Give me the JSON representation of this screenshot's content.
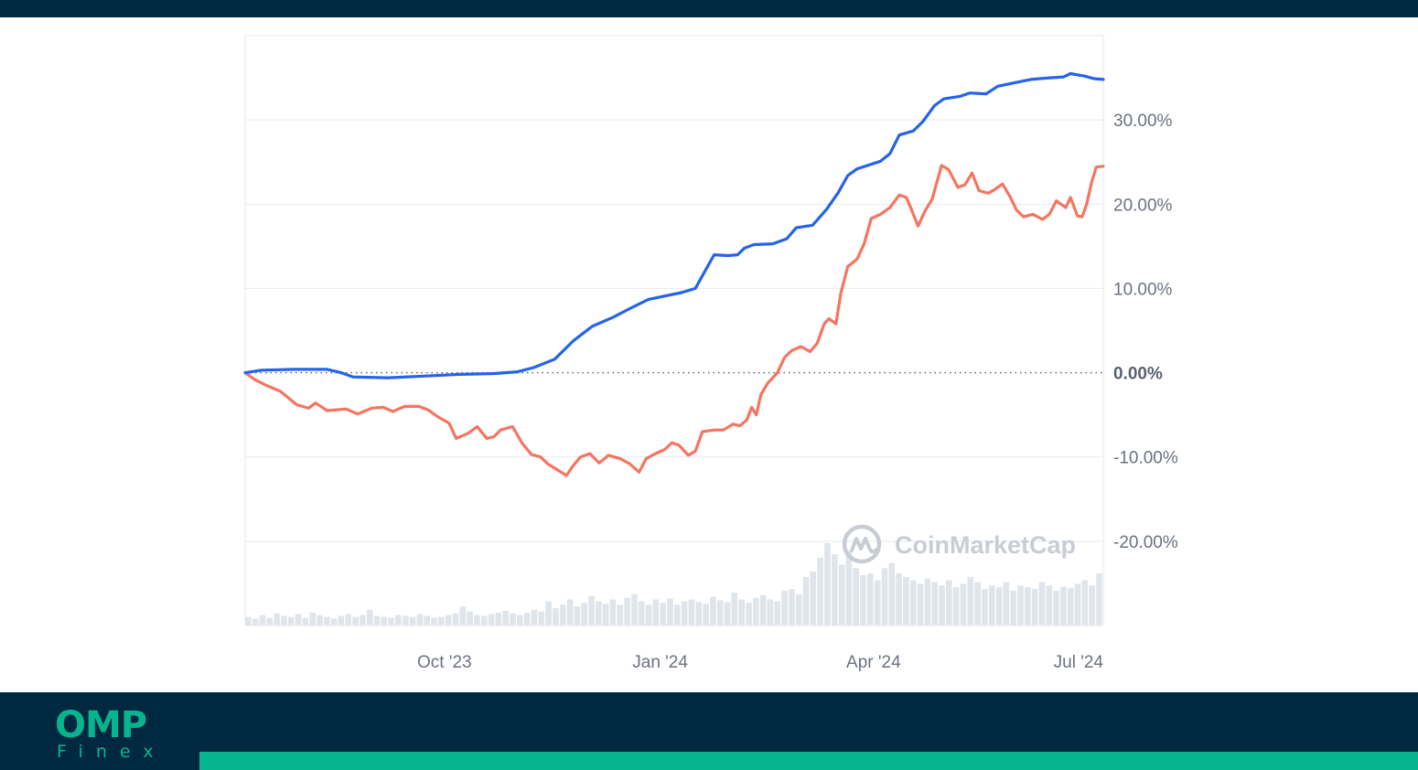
{
  "colors": {
    "navy": "#002840",
    "accent": "#06b58e",
    "series_1": "#2563eb",
    "series_2": "#f47561",
    "volume": "#dfe5ea",
    "grid": "#e7e9ec"
  },
  "branding": {
    "logo_main": "OMP",
    "logo_sub": "Finex",
    "watermark": "CoinMarketCap",
    "watermark_icon": "coinmarketcap-logo-icon"
  },
  "chart_data": {
    "type": "line",
    "title": "",
    "xlabel": "",
    "ylabel": "",
    "x_range": [
      "2023-07-08",
      "2024-07-08"
    ],
    "x_ticks": [
      {
        "date": "2023-10-01",
        "label": "Oct '23"
      },
      {
        "date": "2024-01-01",
        "label": "Jan '24"
      },
      {
        "date": "2024-04-01",
        "label": "Apr '24"
      },
      {
        "date": "2024-07-01",
        "label": "Jul '24"
      }
    ],
    "ylim": [
      -30,
      40
    ],
    "y_ticks": [
      {
        "value": 30,
        "label": "30.00%"
      },
      {
        "value": 20,
        "label": "20.00%"
      },
      {
        "value": 10,
        "label": "10.00%"
      },
      {
        "value": 0,
        "label": "0.00%"
      },
      {
        "value": -10,
        "label": "-10.00%"
      },
      {
        "value": -20,
        "label": "-20.00%"
      }
    ],
    "baseline": 0,
    "grid": true,
    "legend": "none",
    "series": [
      {
        "color": "#2563eb",
        "points": [
          [
            "2023-07-08",
            0.0
          ],
          [
            "2023-07-15",
            0.3
          ],
          [
            "2023-07-29",
            0.4
          ],
          [
            "2023-08-12",
            0.4
          ],
          [
            "2023-08-18",
            0.0
          ],
          [
            "2023-08-23",
            -0.5
          ],
          [
            "2023-09-07",
            -0.6
          ],
          [
            "2023-09-22",
            -0.4
          ],
          [
            "2023-10-07",
            -0.2
          ],
          [
            "2023-10-22",
            -0.1
          ],
          [
            "2023-11-01",
            0.1
          ],
          [
            "2023-11-08",
            0.6
          ],
          [
            "2023-11-17",
            1.6
          ],
          [
            "2023-11-25",
            3.8
          ],
          [
            "2023-12-03",
            5.5
          ],
          [
            "2023-12-12",
            6.6
          ],
          [
            "2023-12-19",
            7.6
          ],
          [
            "2023-12-27",
            8.7
          ],
          [
            "2024-01-03",
            9.1
          ],
          [
            "2024-01-10",
            9.5
          ],
          [
            "2024-01-16",
            10.0
          ],
          [
            "2024-01-20",
            12.0
          ],
          [
            "2024-01-24",
            14.0
          ],
          [
            "2024-01-30",
            13.9
          ],
          [
            "2024-02-03",
            14.0
          ],
          [
            "2024-02-06",
            14.8
          ],
          [
            "2024-02-10",
            15.2
          ],
          [
            "2024-02-18",
            15.3
          ],
          [
            "2024-02-24",
            15.9
          ],
          [
            "2024-02-28",
            17.2
          ],
          [
            "2024-03-06",
            17.5
          ],
          [
            "2024-03-12",
            19.4
          ],
          [
            "2024-03-17",
            21.4
          ],
          [
            "2024-03-21",
            23.4
          ],
          [
            "2024-03-25",
            24.2
          ],
          [
            "2024-04-04",
            25.1
          ],
          [
            "2024-04-08",
            26.0
          ],
          [
            "2024-04-12",
            28.2
          ],
          [
            "2024-04-18",
            28.7
          ],
          [
            "2024-04-22",
            29.8
          ],
          [
            "2024-04-27",
            31.7
          ],
          [
            "2024-05-01",
            32.5
          ],
          [
            "2024-05-08",
            32.8
          ],
          [
            "2024-05-12",
            33.2
          ],
          [
            "2024-05-19",
            33.1
          ],
          [
            "2024-05-24",
            34.0
          ],
          [
            "2024-05-31",
            34.4
          ],
          [
            "2024-06-07",
            34.8
          ],
          [
            "2024-06-15",
            35.0
          ],
          [
            "2024-06-21",
            35.1
          ],
          [
            "2024-06-24",
            35.5
          ],
          [
            "2024-06-30",
            35.2
          ],
          [
            "2024-07-04",
            34.9
          ],
          [
            "2024-07-08",
            34.8
          ]
        ]
      },
      {
        "color": "#f47561",
        "points": [
          [
            "2023-07-08",
            0.0
          ],
          [
            "2023-07-12",
            -0.8
          ],
          [
            "2023-07-17",
            -1.5
          ],
          [
            "2023-07-23",
            -2.2
          ],
          [
            "2023-07-30",
            -3.8
          ],
          [
            "2023-08-04",
            -4.2
          ],
          [
            "2023-08-07",
            -3.6
          ],
          [
            "2023-08-12",
            -4.5
          ],
          [
            "2023-08-20",
            -4.3
          ],
          [
            "2023-08-25",
            -4.9
          ],
          [
            "2023-08-31",
            -4.2
          ],
          [
            "2023-09-05",
            -4.1
          ],
          [
            "2023-09-09",
            -4.6
          ],
          [
            "2023-09-14",
            -4.0
          ],
          [
            "2023-09-20",
            -4.0
          ],
          [
            "2023-09-24",
            -4.4
          ],
          [
            "2023-09-28",
            -5.2
          ],
          [
            "2023-10-03",
            -6.0
          ],
          [
            "2023-10-06",
            -7.8
          ],
          [
            "2023-10-11",
            -7.2
          ],
          [
            "2023-10-15",
            -6.4
          ],
          [
            "2023-10-19",
            -7.8
          ],
          [
            "2023-10-22",
            -7.6
          ],
          [
            "2023-10-25",
            -6.8
          ],
          [
            "2023-10-30",
            -6.4
          ],
          [
            "2023-11-03",
            -8.3
          ],
          [
            "2023-11-07",
            -9.7
          ],
          [
            "2023-11-11",
            -10.0
          ],
          [
            "2023-11-14",
            -10.8
          ],
          [
            "2023-11-18",
            -11.5
          ],
          [
            "2023-11-22",
            -12.2
          ],
          [
            "2023-11-25",
            -11.0
          ],
          [
            "2023-11-28",
            -10.0
          ],
          [
            "2023-12-02",
            -9.6
          ],
          [
            "2023-12-06",
            -10.7
          ],
          [
            "2023-12-10",
            -9.8
          ],
          [
            "2023-12-15",
            -10.2
          ],
          [
            "2023-12-19",
            -10.8
          ],
          [
            "2023-12-23",
            -11.8
          ],
          [
            "2023-12-26",
            -10.2
          ],
          [
            "2023-12-30",
            -9.6
          ],
          [
            "2024-01-03",
            -9.1
          ],
          [
            "2024-01-06",
            -8.3
          ],
          [
            "2024-01-09",
            -8.6
          ],
          [
            "2024-01-13",
            -9.8
          ],
          [
            "2024-01-16",
            -9.3
          ],
          [
            "2024-01-19",
            -7.0
          ],
          [
            "2024-01-24",
            -6.8
          ],
          [
            "2024-01-28",
            -6.8
          ],
          [
            "2024-02-01",
            -6.1
          ],
          [
            "2024-02-04",
            -6.3
          ],
          [
            "2024-02-07",
            -5.6
          ],
          [
            "2024-02-09",
            -4.1
          ],
          [
            "2024-02-11",
            -5.0
          ],
          [
            "2024-02-13",
            -2.6
          ],
          [
            "2024-02-16",
            -1.2
          ],
          [
            "2024-02-20",
            0.0
          ],
          [
            "2024-02-23",
            1.8
          ],
          [
            "2024-02-26",
            2.6
          ],
          [
            "2024-03-01",
            3.1
          ],
          [
            "2024-03-05",
            2.5
          ],
          [
            "2024-03-08",
            3.5
          ],
          [
            "2024-03-11",
            5.8
          ],
          [
            "2024-03-13",
            6.4
          ],
          [
            "2024-03-16",
            5.8
          ],
          [
            "2024-03-18",
            9.4
          ],
          [
            "2024-03-21",
            12.6
          ],
          [
            "2024-03-25",
            13.5
          ],
          [
            "2024-03-28",
            15.3
          ],
          [
            "2024-03-31",
            18.3
          ],
          [
            "2024-04-04",
            18.8
          ],
          [
            "2024-04-08",
            19.6
          ],
          [
            "2024-04-12",
            21.1
          ],
          [
            "2024-04-15",
            20.8
          ],
          [
            "2024-04-17",
            19.5
          ],
          [
            "2024-04-20",
            17.4
          ],
          [
            "2024-04-23",
            19.2
          ],
          [
            "2024-04-26",
            20.6
          ],
          [
            "2024-04-30",
            24.6
          ],
          [
            "2024-05-03",
            24.1
          ],
          [
            "2024-05-07",
            22.0
          ],
          [
            "2024-05-10",
            22.3
          ],
          [
            "2024-05-13",
            23.7
          ],
          [
            "2024-05-16",
            21.6
          ],
          [
            "2024-05-20",
            21.3
          ],
          [
            "2024-05-23",
            21.8
          ],
          [
            "2024-05-26",
            22.4
          ],
          [
            "2024-05-29",
            21.0
          ],
          [
            "2024-06-01",
            19.3
          ],
          [
            "2024-06-04",
            18.5
          ],
          [
            "2024-06-08",
            18.8
          ],
          [
            "2024-06-12",
            18.2
          ],
          [
            "2024-06-15",
            18.8
          ],
          [
            "2024-06-18",
            20.4
          ],
          [
            "2024-06-22",
            19.6
          ],
          [
            "2024-06-24",
            20.8
          ],
          [
            "2024-06-27",
            18.6
          ],
          [
            "2024-06-29",
            18.5
          ],
          [
            "2024-07-01",
            20.1
          ],
          [
            "2024-07-03",
            22.6
          ],
          [
            "2024-07-05",
            24.4
          ],
          [
            "2024-07-08",
            24.5
          ]
        ]
      }
    ],
    "volume_levels": [
      0.1,
      0.08,
      0.12,
      0.09,
      0.14,
      0.11,
      0.1,
      0.13,
      0.09,
      0.15,
      0.12,
      0.1,
      0.08,
      0.11,
      0.13,
      0.1,
      0.12,
      0.18,
      0.11,
      0.1,
      0.09,
      0.12,
      0.11,
      0.1,
      0.13,
      0.11,
      0.09,
      0.1,
      0.12,
      0.14,
      0.22,
      0.16,
      0.12,
      0.11,
      0.13,
      0.15,
      0.17,
      0.14,
      0.12,
      0.15,
      0.18,
      0.16,
      0.28,
      0.2,
      0.24,
      0.3,
      0.22,
      0.26,
      0.34,
      0.28,
      0.25,
      0.3,
      0.24,
      0.32,
      0.36,
      0.28,
      0.24,
      0.3,
      0.26,
      0.31,
      0.24,
      0.28,
      0.3,
      0.27,
      0.25,
      0.33,
      0.29,
      0.27,
      0.38,
      0.3,
      0.26,
      0.32,
      0.35,
      0.3,
      0.28,
      0.4,
      0.42,
      0.36,
      0.56,
      0.62,
      0.78,
      0.95,
      0.82,
      0.7,
      0.86,
      0.66,
      0.58,
      0.6,
      0.52,
      0.66,
      0.72,
      0.6,
      0.56,
      0.52,
      0.48,
      0.54,
      0.5,
      0.46,
      0.52,
      0.44,
      0.48,
      0.56,
      0.5,
      0.42,
      0.46,
      0.44,
      0.5,
      0.4,
      0.46,
      0.44,
      0.42,
      0.5,
      0.46,
      0.4,
      0.45,
      0.43,
      0.48,
      0.52,
      0.46,
      0.6
    ]
  }
}
